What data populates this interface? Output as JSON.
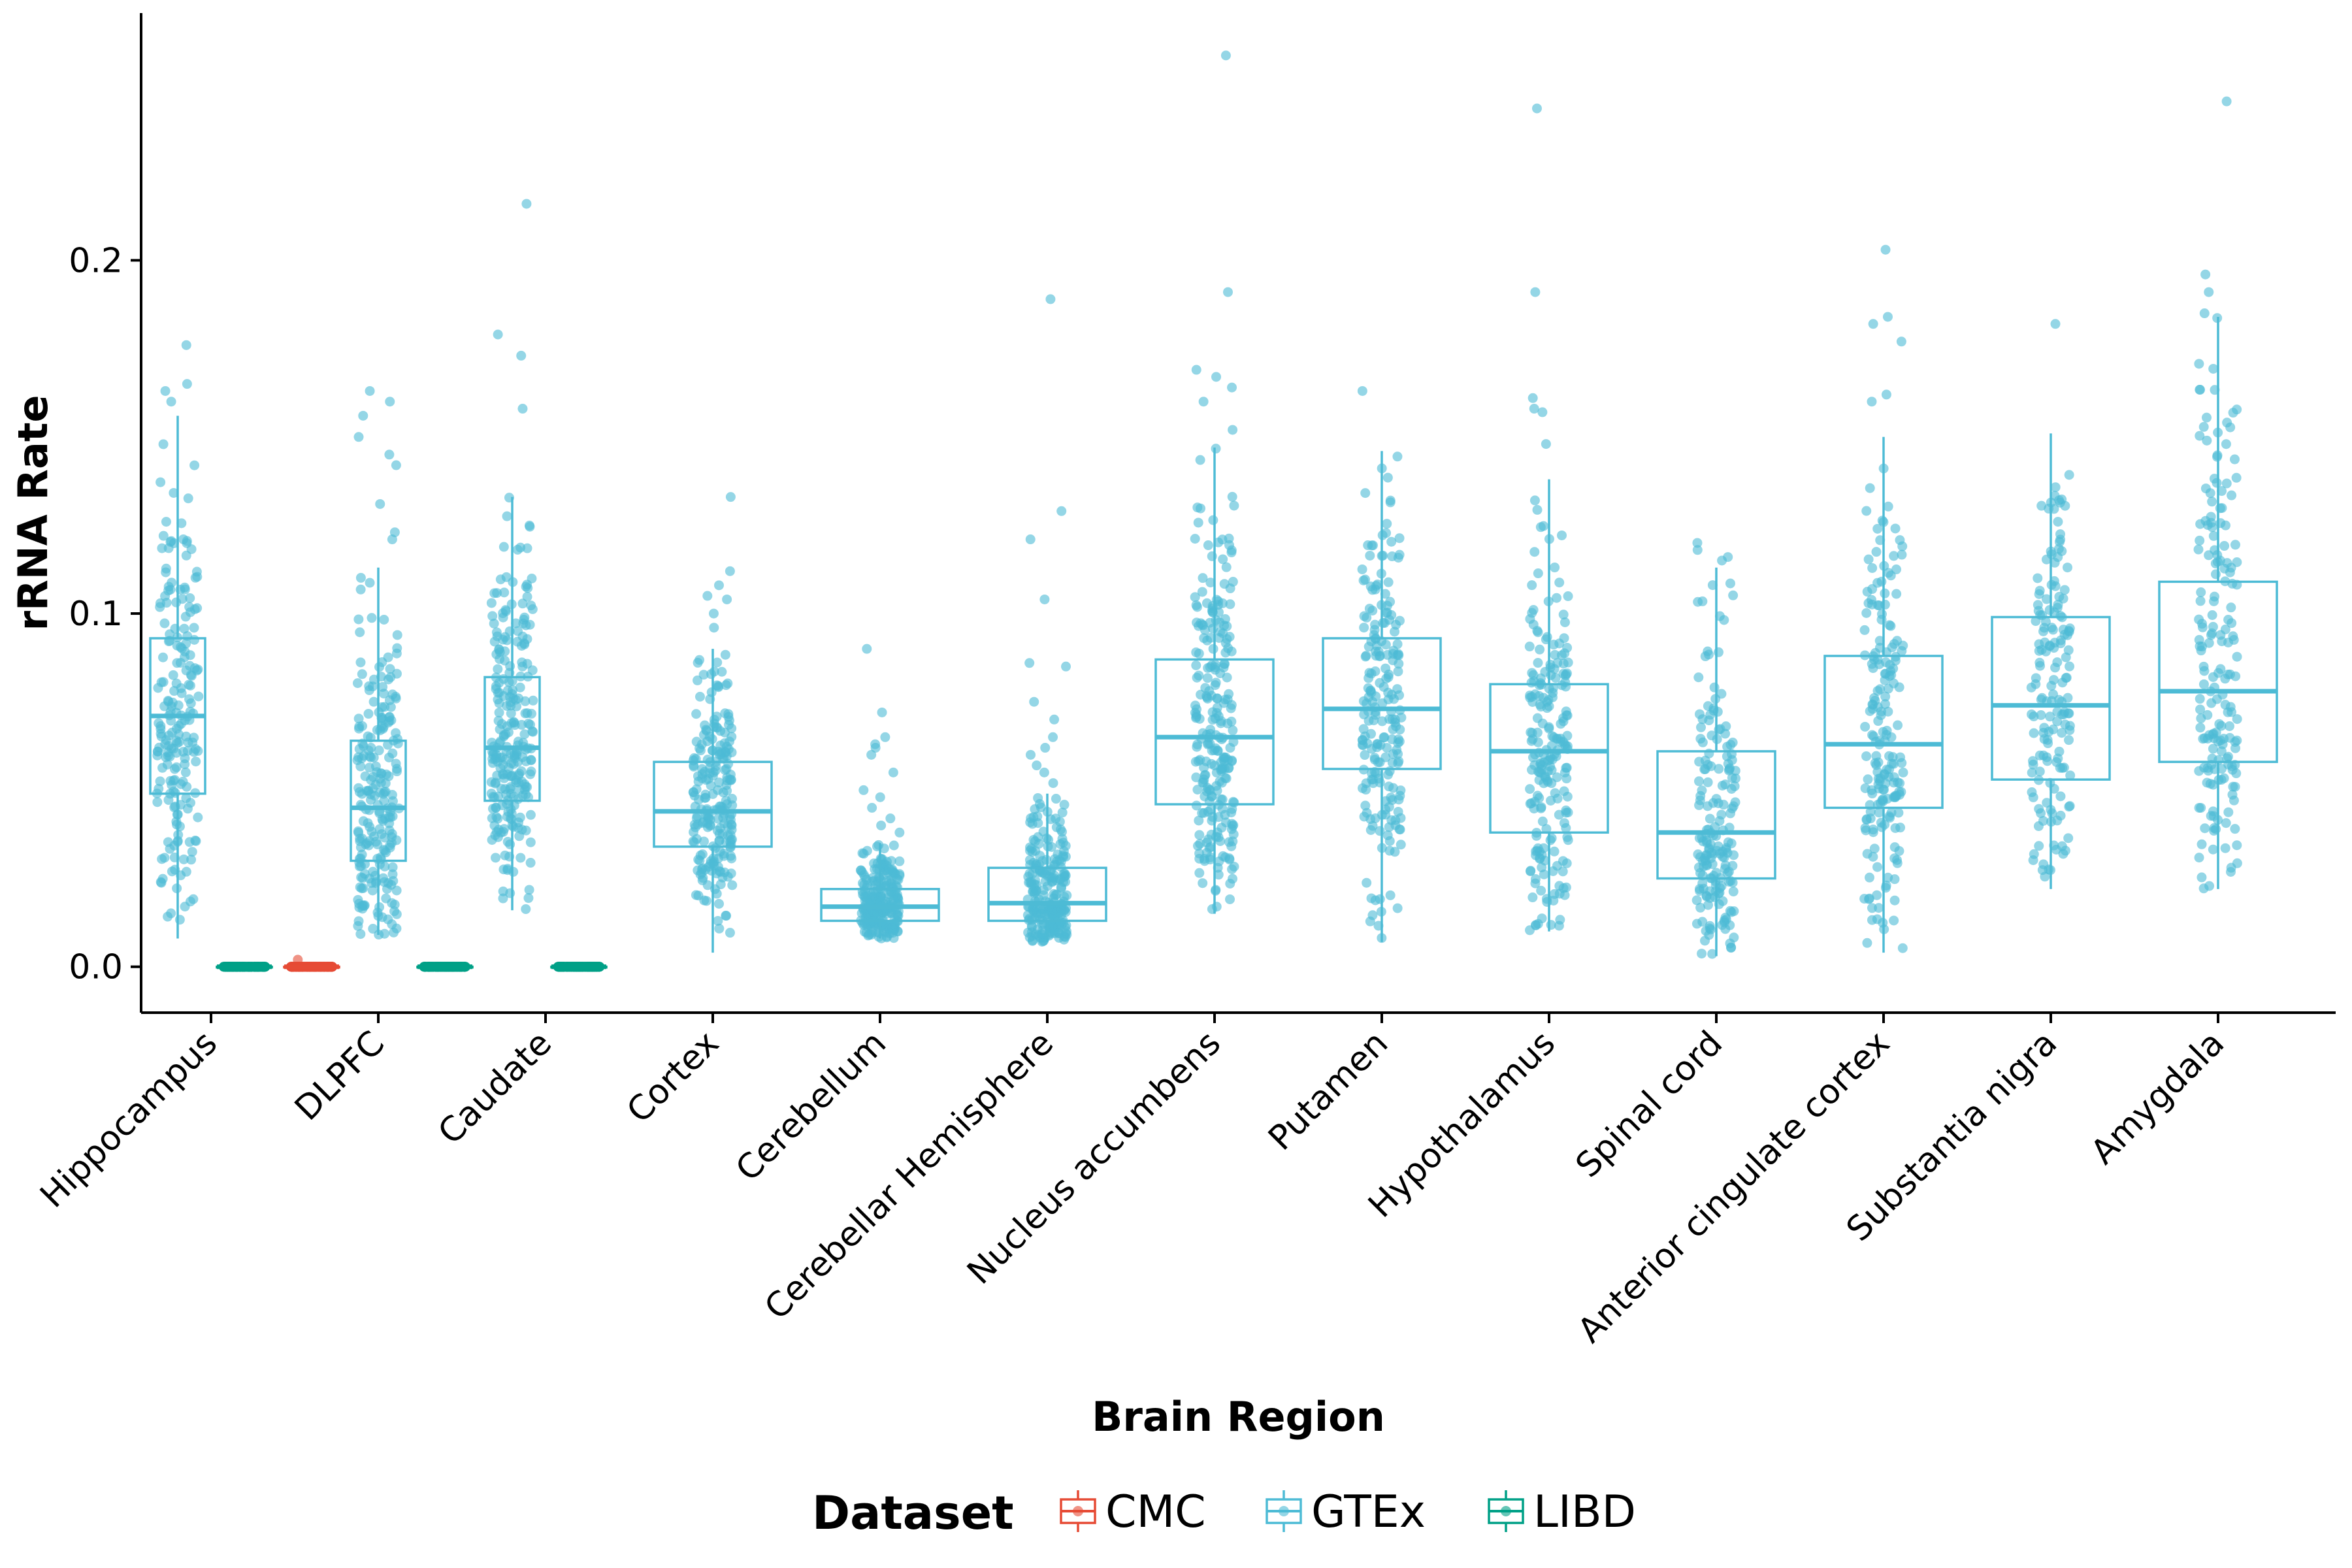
{
  "chart_data": {
    "type": "boxplot",
    "xlabel": "Brain Region",
    "ylabel": "rRNA Rate",
    "ylim": [
      -0.013,
      0.27
    ],
    "yticks": [
      0.0,
      0.1,
      0.2
    ],
    "ytick_labels": [
      "0.0",
      "0.1",
      "0.2"
    ],
    "grid": false,
    "legend": {
      "title": "Dataset",
      "position": "bottom",
      "entries": [
        {
          "name": "CMC",
          "color": "#E64B35"
        },
        {
          "name": "GTEx",
          "color": "#4DBBD5"
        },
        {
          "name": "LIBD",
          "color": "#00A087"
        }
      ]
    },
    "categories": [
      "Hippocampus",
      "DLPFC",
      "Caudate",
      "Cortex",
      "Cerebellum",
      "Cerebellar Hemisphere",
      "Nucleus accumbens",
      "Putamen",
      "Hypothalamus",
      "Spinal cord",
      "Anterior cingulate cortex",
      "Substantia nigra",
      "Amygdala"
    ],
    "series": [
      {
        "name": "GTEx",
        "color": "#4DBBD5",
        "boxes": [
          {
            "category": "Hippocampus",
            "whisker_low": 0.008,
            "q1": 0.049,
            "median": 0.071,
            "q3": 0.093,
            "whisker_high": 0.156,
            "outliers": [
              0.176,
              0.165,
              0.163,
              0.16
            ],
            "n": 200
          },
          {
            "category": "DLPFC",
            "whisker_low": 0.009,
            "q1": 0.03,
            "median": 0.045,
            "q3": 0.064,
            "whisker_high": 0.113,
            "outliers": [
              0.163,
              0.16,
              0.156,
              0.15,
              0.145,
              0.142,
              0.131,
              0.123,
              0.121
            ],
            "n": 220
          },
          {
            "category": "Caudate",
            "whisker_low": 0.016,
            "q1": 0.047,
            "median": 0.062,
            "q3": 0.082,
            "whisker_high": 0.133,
            "outliers": [
              0.216,
              0.179,
              0.173,
              0.158
            ],
            "n": 250
          },
          {
            "category": "Cortex",
            "whisker_low": 0.004,
            "q1": 0.034,
            "median": 0.044,
            "q3": 0.058,
            "whisker_high": 0.09,
            "outliers": [
              0.133,
              0.112,
              0.108,
              0.105,
              0.104,
              0.1,
              0.096
            ],
            "n": 220
          },
          {
            "category": "Cerebellum",
            "whisker_low": 0.008,
            "q1": 0.013,
            "median": 0.017,
            "q3": 0.022,
            "whisker_high": 0.035,
            "outliers": [
              0.09,
              0.072,
              0.065,
              0.063,
              0.062,
              0.06,
              0.055,
              0.05,
              0.048,
              0.045,
              0.042,
              0.04,
              0.038
            ],
            "n": 240
          },
          {
            "category": "Cerebellar Hemisphere",
            "whisker_low": 0.007,
            "q1": 0.013,
            "median": 0.018,
            "q3": 0.028,
            "whisker_high": 0.049,
            "outliers": [
              0.189,
              0.129,
              0.121,
              0.104,
              0.086,
              0.085,
              0.075,
              0.07,
              0.065,
              0.062,
              0.06,
              0.057,
              0.055,
              0.052
            ],
            "n": 240
          },
          {
            "category": "Nucleus accumbens",
            "whisker_low": 0.015,
            "q1": 0.046,
            "median": 0.065,
            "q3": 0.087,
            "whisker_high": 0.147,
            "outliers": [
              0.258,
              0.191,
              0.169,
              0.167,
              0.164,
              0.16,
              0.152
            ],
            "n": 250
          },
          {
            "category": "Putamen",
            "whisker_low": 0.007,
            "q1": 0.056,
            "median": 0.073,
            "q3": 0.093,
            "whisker_high": 0.146,
            "outliers": [
              0.163
            ],
            "n": 210
          },
          {
            "category": "Hypothalamus",
            "whisker_low": 0.01,
            "q1": 0.038,
            "median": 0.061,
            "q3": 0.08,
            "whisker_high": 0.138,
            "outliers": [
              0.243,
              0.191,
              0.161,
              0.158,
              0.157,
              0.148
            ],
            "n": 210
          },
          {
            "category": "Spinal cord",
            "whisker_low": 0.003,
            "q1": 0.025,
            "median": 0.038,
            "q3": 0.061,
            "whisker_high": 0.113,
            "outliers": [
              0.12,
              0.118,
              0.116,
              0.115
            ],
            "n": 180
          },
          {
            "category": "Anterior cingulate cortex",
            "whisker_low": 0.004,
            "q1": 0.045,
            "median": 0.063,
            "q3": 0.088,
            "whisker_high": 0.15,
            "outliers": [
              0.203,
              0.184,
              0.182,
              0.177,
              0.162,
              0.16
            ],
            "n": 190
          },
          {
            "category": "Substantia nigra",
            "whisker_low": 0.022,
            "q1": 0.053,
            "median": 0.074,
            "q3": 0.099,
            "whisker_high": 0.151,
            "outliers": [
              0.182
            ],
            "n": 160
          },
          {
            "category": "Amygdala",
            "whisker_low": 0.022,
            "q1": 0.058,
            "median": 0.078,
            "q3": 0.109,
            "whisker_high": 0.184,
            "outliers": [
              0.245,
              0.196,
              0.191,
              0.185
            ],
            "n": 180
          }
        ]
      },
      {
        "name": "CMC",
        "color": "#E64B35",
        "boxes": [
          {
            "category": "DLPFC",
            "whisker_low": 0.0,
            "q1": 0.0,
            "median": 0.0,
            "q3": 0.0,
            "whisker_high": 0.001,
            "outliers": [
              0.002
            ],
            "n": 300
          }
        ]
      },
      {
        "name": "LIBD",
        "color": "#00A087",
        "boxes": [
          {
            "category": "Hippocampus",
            "whisker_low": 0.0,
            "q1": 0.0,
            "median": 0.0,
            "q3": 0.0,
            "whisker_high": 0.0,
            "outliers": [],
            "n": 300
          },
          {
            "category": "DLPFC",
            "whisker_low": 0.0,
            "q1": 0.0,
            "median": 0.0,
            "q3": 0.0,
            "whisker_high": 0.0,
            "outliers": [],
            "n": 300
          },
          {
            "category": "Caudate",
            "whisker_low": 0.0,
            "q1": 0.0,
            "median": 0.0,
            "q3": 0.0,
            "whisker_high": 0.0,
            "outliers": [],
            "n": 300
          }
        ]
      }
    ]
  }
}
